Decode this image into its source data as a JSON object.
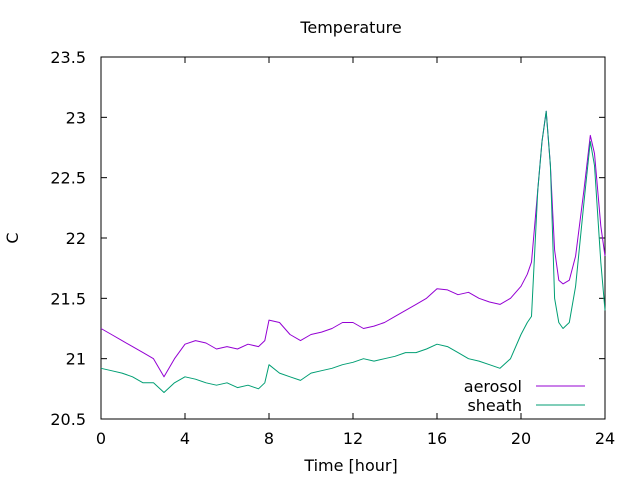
{
  "chart_data": {
    "type": "line",
    "title": "Temperature",
    "xlabel": "Time [hour]",
    "ylabel": "C",
    "xlim": [
      0,
      24
    ],
    "ylim": [
      20.5,
      23.5
    ],
    "xticks": [
      "0",
      "4",
      "8",
      "12",
      "16",
      "20",
      "24"
    ],
    "yticks": [
      "20.5",
      "21",
      "21.5",
      "22",
      "22.5",
      "23",
      "23.5"
    ],
    "grid": false,
    "legend_position": "bottom-right",
    "series": [
      {
        "name": "aerosol",
        "color": "#9400d3",
        "x": [
          0,
          0.5,
          1,
          1.5,
          2,
          2.5,
          3,
          3.5,
          4,
          4.5,
          5,
          5.5,
          6,
          6.5,
          7,
          7.5,
          7.8,
          8,
          8.5,
          9,
          9.5,
          10,
          10.5,
          11,
          11.5,
          12,
          12.5,
          13,
          13.5,
          14,
          14.5,
          15,
          15.5,
          16,
          16.5,
          17,
          17.5,
          18,
          18.5,
          19,
          19.5,
          20,
          20.3,
          20.5,
          20.8,
          21,
          21.2,
          21.4,
          21.6,
          21.8,
          22,
          22.3,
          22.6,
          23,
          23.3,
          23.5,
          23.8,
          24
        ],
        "values": [
          21.25,
          21.2,
          21.15,
          21.1,
          21.05,
          21.0,
          20.85,
          21.0,
          21.12,
          21.15,
          21.13,
          21.08,
          21.1,
          21.08,
          21.12,
          21.1,
          21.15,
          21.32,
          21.3,
          21.2,
          21.15,
          21.2,
          21.22,
          21.25,
          21.3,
          21.3,
          21.25,
          21.27,
          21.3,
          21.35,
          21.4,
          21.45,
          21.5,
          21.58,
          21.57,
          21.53,
          21.55,
          21.5,
          21.47,
          21.45,
          21.5,
          21.6,
          21.7,
          21.8,
          22.4,
          22.8,
          23.05,
          22.6,
          21.9,
          21.65,
          21.62,
          21.65,
          21.85,
          22.4,
          22.85,
          22.7,
          22.1,
          21.85
        ]
      },
      {
        "name": "sheath",
        "color": "#009e73",
        "x": [
          0,
          0.5,
          1,
          1.5,
          2,
          2.5,
          3,
          3.5,
          4,
          4.5,
          5,
          5.5,
          6,
          6.5,
          7,
          7.5,
          7.8,
          8,
          8.5,
          9,
          9.5,
          10,
          10.5,
          11,
          11.5,
          12,
          12.5,
          13,
          13.5,
          14,
          14.5,
          15,
          15.5,
          16,
          16.5,
          17,
          17.5,
          18,
          18.5,
          19,
          19.5,
          20,
          20.3,
          20.5,
          20.8,
          21,
          21.2,
          21.4,
          21.6,
          21.8,
          22,
          22.3,
          22.6,
          23,
          23.3,
          23.5,
          23.8,
          24
        ],
        "values": [
          20.92,
          20.9,
          20.88,
          20.85,
          20.8,
          20.8,
          20.72,
          20.8,
          20.85,
          20.83,
          20.8,
          20.78,
          20.8,
          20.76,
          20.78,
          20.75,
          20.8,
          20.95,
          20.88,
          20.85,
          20.82,
          20.88,
          20.9,
          20.92,
          20.95,
          20.97,
          21.0,
          20.98,
          21.0,
          21.02,
          21.05,
          21.05,
          21.08,
          21.12,
          21.1,
          21.05,
          21.0,
          20.98,
          20.95,
          20.92,
          21.0,
          21.2,
          21.3,
          21.35,
          22.4,
          22.8,
          23.05,
          22.6,
          21.5,
          21.3,
          21.25,
          21.3,
          21.6,
          22.3,
          22.8,
          22.6,
          21.8,
          21.4
        ]
      }
    ]
  }
}
